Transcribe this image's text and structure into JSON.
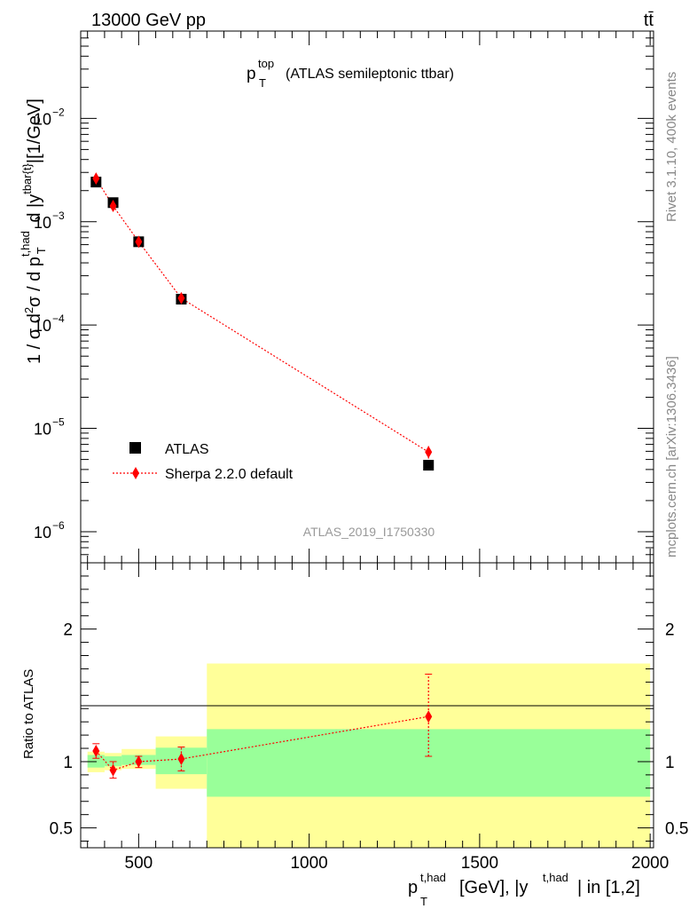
{
  "header": {
    "energy_label": "13000 GeV pp",
    "process_label": "tt̄"
  },
  "side_labels": {
    "rivet": "Rivet 3.1.10,  400k events",
    "mcplots": "mcplots.cern.ch [arXiv:1306.3436]"
  },
  "chart_data": [
    {
      "type": "scatter",
      "title": "p_T^top (ATLAS semileptonic ttbar)",
      "title_main": "p",
      "title_sup": "top",
      "title_sub": "T",
      "title_rest": "(ATLAS semileptonic ttbar)",
      "ylabel": "1 / σ d²σ / d p_T^{t,had} d |y^{tbar{t}}|[1/GeV]",
      "yscale": "log",
      "ylim": [
        5e-07,
        0.07
      ],
      "xlim": [
        330,
        2010
      ],
      "yticks": [
        {
          "value": 1e-06,
          "mantissa": "10",
          "exp": "−6"
        },
        {
          "value": 1e-05,
          "mantissa": "10",
          "exp": "−5"
        },
        {
          "value": 0.0001,
          "mantissa": "10",
          "exp": "−4"
        },
        {
          "value": 0.001,
          "mantissa": "10",
          "exp": "−3"
        },
        {
          "value": 0.01,
          "mantissa": "10",
          "exp": "−2"
        }
      ],
      "watermark": "ATLAS_2019_I1750330",
      "legend": {
        "position": "bottom-left",
        "data_label": "ATLAS",
        "mc_label": "Sherpa 2.2.0 default"
      },
      "series": [
        {
          "name": "ATLAS",
          "color": "#000000",
          "x": [
            375,
            425,
            500,
            625,
            1350
          ],
          "y": [
            0.00242,
            0.00153,
            0.00064,
            0.000178,
            4.4e-06
          ]
        },
        {
          "name": "Sherpa 2.2.0 default",
          "color": "#ff0000",
          "x": [
            375,
            425,
            500,
            625,
            1350
          ],
          "y": [
            0.00262,
            0.00142,
            0.00064,
            0.000182,
            5.9e-06
          ],
          "err_lo": [
            0.00248,
            0.00133,
            0.00061,
            0.000168,
            5.1e-06
          ],
          "err_hi": [
            0.00276,
            0.00151,
            0.00067,
            0.000194,
            6.8e-06
          ]
        }
      ]
    },
    {
      "type": "scatter",
      "ylabel": "Ratio to ATLAS",
      "xlabel": "p_T^{t,had} [GeV], |y^{t,had}| in [1,2]",
      "xlabel_main": "p",
      "xlabel_sup": "t,had",
      "xlabel_sub": "T",
      "xlabel_mid": "[GeV], |y",
      "xlabel_sup2": "t,had",
      "xlabel_end": "| in [1,2]",
      "xlim": [
        330,
        2010
      ],
      "ylim": [
        0.35,
        2.5
      ],
      "xticks": [
        500,
        1000,
        1500,
        2000
      ],
      "xtick_labels": [
        "500",
        "1000",
        "1500",
        "2000"
      ],
      "yticks": [
        0.5,
        1,
        2
      ],
      "ytick_labels": [
        "0.5",
        "1",
        "2"
      ],
      "bins": [
        350,
        400,
        450,
        550,
        700,
        2000
      ],
      "band_stat_lo": [
        0.955,
        0.965,
        0.975,
        0.905,
        0.735
      ],
      "band_stat_hi": [
        1.05,
        1.04,
        1.05,
        1.105,
        1.245
      ],
      "band_tot_lo": [
        0.92,
        0.935,
        0.945,
        0.795,
        0.35
      ],
      "band_tot_hi": [
        1.075,
        1.065,
        1.095,
        1.19,
        1.74
      ],
      "series": [
        {
          "name": "Sherpa 2.2.0 default / ATLAS",
          "color": "#ff0000",
          "x": [
            375,
            425,
            500,
            625,
            1350
          ],
          "y": [
            1.08,
            0.935,
            1.0,
            1.02,
            1.34
          ],
          "err_lo": [
            1.025,
            0.875,
            0.955,
            0.93,
            1.04
          ],
          "err_hi": [
            1.135,
            1.0,
            1.04,
            1.11,
            1.66
          ]
        }
      ]
    }
  ],
  "colors": {
    "stat_band": "#99ff99",
    "total_band": "#ffff99",
    "mc": "#ff0000",
    "data": "#000000"
  }
}
